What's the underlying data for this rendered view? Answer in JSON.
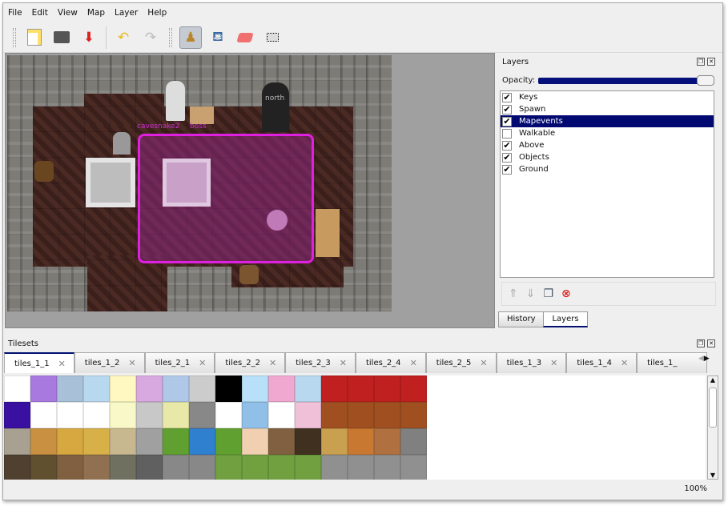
{
  "menu": [
    "File",
    "Edit",
    "View",
    "Map",
    "Layer",
    "Help"
  ],
  "toolbar": {
    "icons": [
      "new-file-icon",
      "open-folder-icon",
      "save-icon",
      "undo-icon",
      "redo-icon",
      "stamp-brush-icon",
      "bucket-fill-icon",
      "eraser-icon",
      "rect-select-icon"
    ],
    "active": "stamp-brush-icon"
  },
  "map": {
    "objects": {
      "label1": "cavesnake2",
      "label2": "boss",
      "label3": "north"
    },
    "selection_color": "#e020e0"
  },
  "layers_panel": {
    "title": "Layers",
    "opacity_label": "Opacity:",
    "opacity": 1.0,
    "layers": [
      {
        "name": "Keys",
        "visible": true
      },
      {
        "name": "Spawn",
        "visible": true
      },
      {
        "name": "Mapevents",
        "visible": true,
        "selected": true
      },
      {
        "name": "Walkable",
        "visible": false
      },
      {
        "name": "Above",
        "visible": true
      },
      {
        "name": "Objects",
        "visible": true
      },
      {
        "name": "Ground",
        "visible": true
      }
    ],
    "tabs": [
      "History",
      "Layers"
    ],
    "active_tab": "Layers"
  },
  "tilesets": {
    "title": "Tilesets",
    "tabs": [
      "tiles_1_1",
      "tiles_1_2",
      "tiles_2_1",
      "tiles_2_2",
      "tiles_2_3",
      "tiles_2_4",
      "tiles_2_5",
      "tiles_1_3",
      "tiles_1_4",
      "tiles_1_"
    ],
    "active": "tiles_1_1"
  },
  "status": {
    "zoom": "100%"
  },
  "colors": {
    "accent": "#020a72"
  }
}
